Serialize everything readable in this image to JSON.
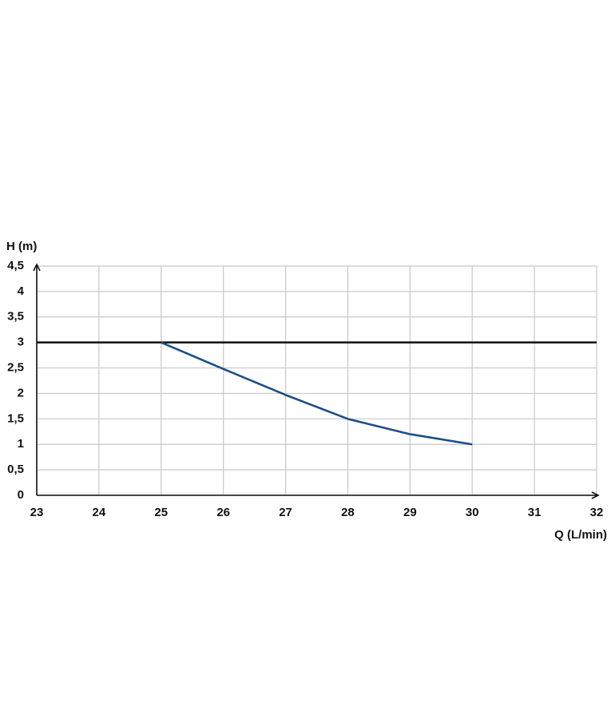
{
  "chart_data": {
    "type": "line",
    "ylabel": "H (m)",
    "xlabel": "Q (L/min)",
    "x": [
      25,
      26,
      27,
      28,
      29,
      30
    ],
    "series": [
      {
        "color": "#1d4e85",
        "values": [
          3,
          2.48,
          1.97,
          1.5,
          1.2,
          1
        ]
      }
    ],
    "reference_line": {
      "value": 3,
      "color": "#111111"
    },
    "xlim": [
      23,
      32
    ],
    "ylim": [
      0,
      4.5
    ],
    "xticks": [
      23,
      24,
      25,
      26,
      27,
      28,
      29,
      30,
      31,
      32
    ],
    "yticks": [
      0,
      {
        "value": 0.5,
        "label": "0,5"
      },
      1,
      {
        "value": 1.5,
        "label": "1,5"
      },
      2,
      {
        "value": 2.5,
        "label": "2,5"
      },
      3,
      {
        "value": 3.5,
        "label": "3,5"
      },
      4,
      {
        "value": 4.5,
        "label": "4,5"
      }
    ],
    "grid": true
  }
}
